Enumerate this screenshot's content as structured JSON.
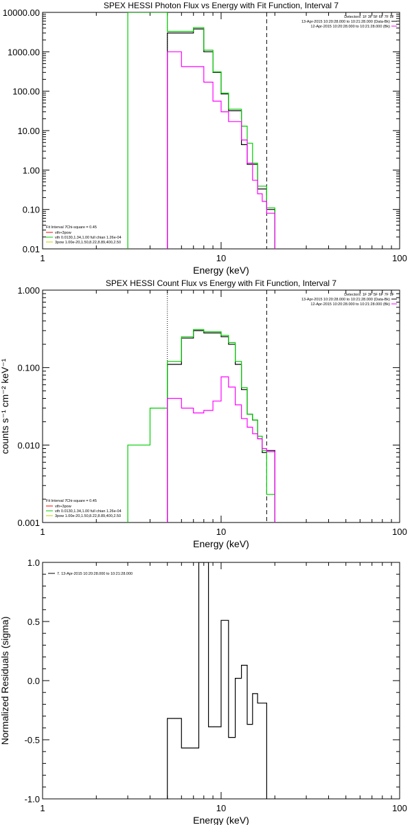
{
  "chart_data": [
    {
      "type": "line",
      "title": "SPEX HESSI Photon Flux vs Energy with Fit Function, Interval 7",
      "xlabel": "Energy (keV)",
      "ylabel": "",
      "xscale": "log",
      "yscale": "log",
      "xlim": [
        1,
        100
      ],
      "ylim": [
        0.01,
        10000
      ],
      "x_ticks": [
        "1",
        "10",
        "100"
      ],
      "y_ticks": [
        "0.01",
        "0.10",
        "1.00",
        "10.00",
        "100.00",
        "1000.00",
        "10000.00"
      ],
      "header_lines": [
        "Detectors: 1F 3F 5F 6F 7F 9F"
      ],
      "time_labels": [
        "13-Apr-2015 10:20:28.000 to 10:21:28.000 (Data-Bk)",
        "12-Apr-2015 10:20:28.000 to 10:21:28.000 (Bk)"
      ],
      "fit_header": [
        "Fit Interval 7",
        "Chi-square = 0.45"
      ],
      "legend": [
        {
          "label": "vth+3pow",
          "color": "#ff0000"
        },
        {
          "label": "vth 0.0130,1.34,1.00 full chian 1.26e-04",
          "color": "#00cc00"
        },
        {
          "label": "3pow 1.00e-20,1.50,8.22,8.89,400,2.50",
          "color": "#cccc00"
        }
      ],
      "vlines": [
        {
          "x": 5.0,
          "style": "dotted"
        },
        {
          "x": 18.0,
          "style": "dashed"
        }
      ],
      "edges": [
        3.0,
        4.0,
        5.0,
        6.0,
        7.0,
        8.0,
        9.0,
        10.0,
        11.0,
        12.0,
        13.0,
        14.0,
        15.0,
        16.0,
        17.0,
        18.0,
        20.0
      ],
      "series": [
        {
          "color": "#000000",
          "values": [
            null,
            null,
            3000,
            3000,
            3800,
            1000,
            300,
            85,
            32,
            32,
            4.4,
            1.4,
            1.4,
            0.33,
            0.33,
            0.1
          ]
        },
        {
          "color": "#00cc00",
          "values": [
            10000,
            10000,
            3300,
            3300,
            4100,
            1100,
            310,
            90,
            35,
            35,
            13,
            4.8,
            1.5,
            0.39,
            0.39,
            0.11
          ]
        },
        {
          "color": "#ff00ff",
          "values": [
            null,
            null,
            1000,
            420,
            420,
            170,
            56,
            30,
            17,
            17,
            5.8,
            1.5,
            0.55,
            0.25,
            0.16,
            0.08
          ]
        }
      ]
    },
    {
      "type": "line",
      "title": "SPEX HESSI Count Flux vs Energy with Fit Function, Interval 7",
      "xlabel": "Energy (keV)",
      "ylabel": "counts s⁻¹ cm⁻² keV⁻¹",
      "xscale": "log",
      "yscale": "log",
      "xlim": [
        1,
        100
      ],
      "ylim": [
        0.001,
        1.0
      ],
      "x_ticks": [
        "1",
        "10",
        "100"
      ],
      "y_ticks": [
        "0.001",
        "0.010",
        "0.100",
        "1.000"
      ],
      "header_lines": [
        "Detectors: 1F 3F 5F 6F 7F 9F"
      ],
      "time_labels": [
        "13-Apr-2015 10:20:28.000 to 10:21:28.000 (Data-Bk)",
        "12-Apr-2015 10:20:28.000 to 10:21:28.000 (Bk)"
      ],
      "fit_header": [
        "Fit Interval 7",
        "Chi-square = 0.45"
      ],
      "legend": [
        {
          "label": "vth+3pow",
          "color": "#ff0000"
        },
        {
          "label": "vth 0.0130,1.34,1.00 full chian 1.26e-04",
          "color": "#00cc00"
        },
        {
          "label": "3pow 1.00e-20,1.50,8.22,8.89,400,2.50",
          "color": "#cccc00"
        }
      ],
      "vlines": [
        {
          "x": 5.0,
          "style": "dotted"
        },
        {
          "x": 18.0,
          "style": "dashed"
        }
      ],
      "edges": [
        3.0,
        4.0,
        5.0,
        6.0,
        7.0,
        8.0,
        9.0,
        10.0,
        11.0,
        12.0,
        13.0,
        14.0,
        15.0,
        16.0,
        17.0,
        18.0,
        20.0
      ],
      "series": [
        {
          "color": "#000000",
          "values": [
            null,
            null,
            0.11,
            0.24,
            0.3,
            0.28,
            0.28,
            0.25,
            0.2,
            0.11,
            0.052,
            0.025,
            0.021,
            0.012,
            0.008,
            0.0085
          ]
        },
        {
          "color": "#00cc00",
          "values": [
            0.01,
            0.03,
            0.12,
            0.25,
            0.31,
            0.29,
            0.29,
            0.26,
            0.21,
            0.12,
            0.055,
            0.025,
            0.021,
            0.013,
            0.0085,
            0.0023
          ]
        },
        {
          "color": "#ff00ff",
          "values": [
            null,
            null,
            0.04,
            0.03,
            0.026,
            0.028,
            0.037,
            0.076,
            0.056,
            0.033,
            0.022,
            0.017,
            0.014,
            0.012,
            0.009,
            0.0082
          ]
        }
      ]
    },
    {
      "type": "line",
      "title": "",
      "xlabel": "Energy (keV)",
      "ylabel": "Normalized Residuals (sigma)",
      "xscale": "log",
      "yscale": "linear",
      "xlim": [
        1,
        100
      ],
      "ylim": [
        -1.0,
        1.0
      ],
      "x_ticks": [
        "1",
        "10",
        "100"
      ],
      "y_ticks": [
        "-1.0",
        "-0.5",
        "0.0",
        "0.5",
        "1.0"
      ],
      "legend": [
        {
          "label": "7. 13-Apr-2015 10:20:28.000 to 10:21:28.000",
          "color": "#000000"
        }
      ],
      "edges": [
        5.0,
        6.0,
        7.0,
        7.5,
        8.5,
        9.0,
        10.0,
        11.0,
        12.0,
        13.0,
        14.0,
        15.0,
        16.0,
        17.0,
        18.0
      ],
      "series": [
        {
          "color": "#000000",
          "values": [
            -0.32,
            -0.57,
            -0.57,
            1.0,
            -0.39,
            -0.39,
            0.51,
            -0.48,
            0.02,
            0.13,
            -0.37,
            -0.11,
            -0.19,
            -0.19
          ]
        }
      ]
    }
  ]
}
